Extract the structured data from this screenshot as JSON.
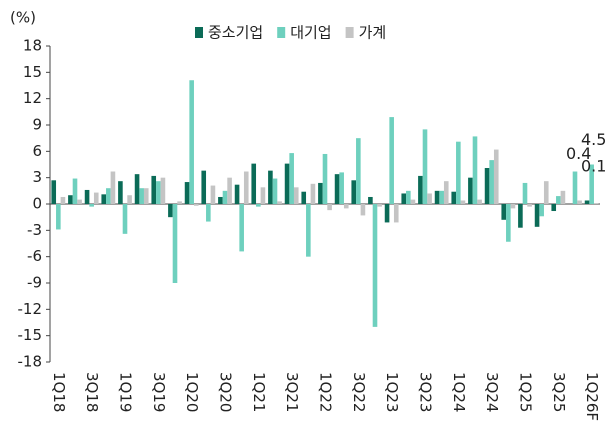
{
  "chart_data": {
    "type": "bar",
    "y_label": "(%)",
    "categories": [
      "1Q18",
      null,
      "3Q18",
      null,
      "1Q19",
      null,
      "3Q19",
      null,
      "1Q20",
      null,
      "3Q20",
      null,
      "1Q21",
      null,
      "3Q21",
      null,
      "1Q22",
      null,
      "3Q22",
      null,
      "1Q23",
      null,
      "3Q23",
      null,
      "1Q24",
      null,
      "3Q24",
      null,
      "1Q25",
      null,
      "3Q25",
      null,
      "1Q26F"
    ],
    "series": [
      {
        "name": "중소기업",
        "color": "#0b6b57",
        "values": [
          2.7,
          1.0,
          1.6,
          1.1,
          2.6,
          3.4,
          3.2,
          -1.5,
          2.5,
          3.8,
          0.8,
          2.2,
          4.6,
          3.8,
          4.6,
          1.4,
          2.4,
          3.4,
          2.7,
          0.8,
          -2.1,
          1.2,
          3.2,
          1.5,
          1.4,
          3.0,
          4.1,
          -1.8,
          -2.7,
          -2.6,
          -0.8,
          0.0,
          0.4
        ]
      },
      {
        "name": "대기업",
        "color": "#6ed0be",
        "values": [
          -2.9,
          2.9,
          -0.3,
          1.8,
          -3.4,
          1.8,
          2.6,
          -9.0,
          14.1,
          -2.0,
          1.5,
          -5.4,
          -0.3,
          2.9,
          5.8,
          -6.0,
          5.7,
          3.6,
          7.5,
          -14.0,
          9.9,
          1.5,
          8.5,
          1.5,
          7.1,
          7.7,
          5.0,
          -4.3,
          2.4,
          -1.4,
          0.9,
          3.7,
          4.5
        ]
      },
      {
        "name": "가계",
        "color": "#c4c4c4",
        "values": [
          0.8,
          0.5,
          1.3,
          3.7,
          1.0,
          1.8,
          3.0,
          0.3,
          -0.2,
          2.1,
          3.0,
          3.7,
          1.9,
          0.3,
          1.9,
          2.3,
          -0.7,
          -0.5,
          -1.3,
          -0.3,
          -2.1,
          0.5,
          1.2,
          2.6,
          0.4,
          0.5,
          6.2,
          -0.5,
          -0.3,
          2.6,
          1.5,
          0.4,
          0.1
        ]
      }
    ],
    "ylim": [
      -18,
      18
    ],
    "yticks": [
      -18,
      -15,
      -12,
      -9,
      -6,
      -3,
      0,
      3,
      6,
      9,
      12,
      15,
      18
    ],
    "grid": false
  }
}
